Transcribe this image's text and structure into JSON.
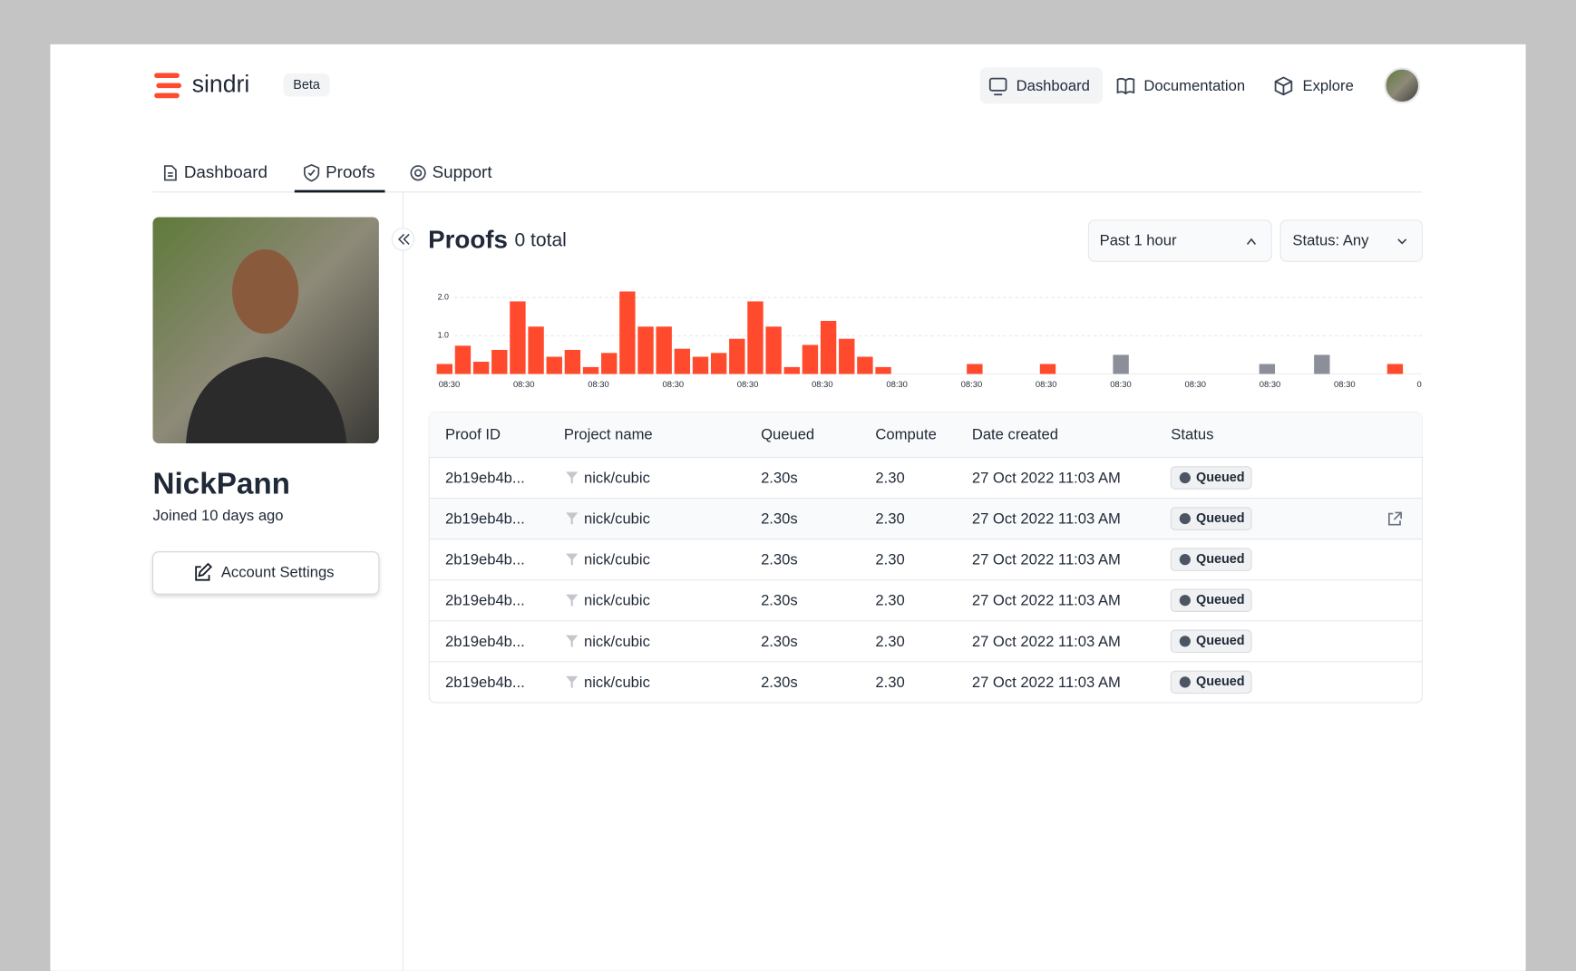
{
  "header": {
    "logo": "sindri",
    "badge": "Beta",
    "nav": [
      "Dashboard",
      "Documentation",
      "Explore"
    ]
  },
  "tabs": [
    "Dashboard",
    "Proofs",
    "Support"
  ],
  "profile": {
    "name": "NickPann",
    "joined": "Joined 10 days ago",
    "button": "Account Settings"
  },
  "proofs": {
    "title": "Proofs",
    "total": "0 total",
    "range": "Past 1 hour",
    "status": "Status: Any"
  },
  "chart_data": {
    "type": "bar",
    "ylim": [
      0,
      2.2
    ],
    "yticks": [
      {
        "value": 2,
        "label": "2.0"
      },
      {
        "value": 1,
        "label": "1.0"
      }
    ],
    "x_labels": [
      "08:30",
      "08:30",
      "08:30",
      "08:30",
      "08:30",
      "08:30",
      "08:30",
      "08:30",
      "08:30",
      "08:30",
      "08:30",
      "08:30",
      "08:30",
      "0"
    ],
    "values": [
      0.26,
      0.74,
      0.32,
      0.63,
      1.9,
      1.24,
      0.45,
      0.63,
      0.18,
      0.55,
      2.16,
      1.24,
      1.24,
      0.66,
      0.45,
      0.55,
      0.92,
      1.9,
      1.24,
      0.18,
      0.76,
      1.39,
      0.92,
      0.45,
      0.18,
      null,
      null,
      null,
      null,
      0.26,
      null,
      null,
      null,
      0.26,
      null,
      null,
      null,
      0.5,
      null,
      null,
      null,
      null,
      null,
      null,
      null,
      0.26,
      null,
      null,
      0.5,
      null,
      null,
      null,
      0.26,
      null
    ],
    "colors": [
      "#ff4a2e",
      "#ff4a2e",
      "#ff4a2e",
      "#ff4a2e",
      "#ff4a2e",
      "#ff4a2e",
      "#ff4a2e",
      "#ff4a2e",
      "#ff4a2e",
      "#ff4a2e",
      "#ff4a2e",
      "#ff4a2e",
      "#ff4a2e",
      "#ff4a2e",
      "#ff4a2e",
      "#ff4a2e",
      "#ff4a2e",
      "#ff4a2e",
      "#ff4a2e",
      "#ff4a2e",
      "#ff4a2e",
      "#ff4a2e",
      "#ff4a2e",
      "#ff4a2e",
      "#ff4a2e",
      null,
      null,
      null,
      null,
      "#ff4a2e",
      null,
      null,
      null,
      "#ff4a2e",
      null,
      null,
      null,
      "#8a8f9a",
      null,
      null,
      null,
      null,
      null,
      null,
      null,
      "#8a8f9a",
      null,
      null,
      "#8a8f9a",
      null,
      null,
      null,
      "#ff4a2e",
      null
    ]
  },
  "table": {
    "columns": [
      "Proof ID",
      "Project name",
      "Queued",
      "Compute",
      "Date created",
      "Status"
    ],
    "rows": [
      [
        "2b19eb4b...",
        "nick/cubic",
        "2.30s",
        "2.30",
        "27 Oct 2022 11:03 AM",
        "Queued"
      ],
      [
        "2b19eb4b...",
        "nick/cubic",
        "2.30s",
        "2.30",
        "27 Oct 2022 11:03 AM",
        "Queued"
      ],
      [
        "2b19eb4b...",
        "nick/cubic",
        "2.30s",
        "2.30",
        "27 Oct 2022 11:03 AM",
        "Queued"
      ],
      [
        "2b19eb4b...",
        "nick/cubic",
        "2.30s",
        "2.30",
        "27 Oct 2022 11:03 AM",
        "Queued"
      ],
      [
        "2b19eb4b...",
        "nick/cubic",
        "2.30s",
        "2.30",
        "27 Oct 2022 11:03 AM",
        "Queued"
      ],
      [
        "2b19eb4b...",
        "nick/cubic",
        "2.30s",
        "2.30",
        "27 Oct 2022 11:03 AM",
        "Queued"
      ]
    ]
  }
}
